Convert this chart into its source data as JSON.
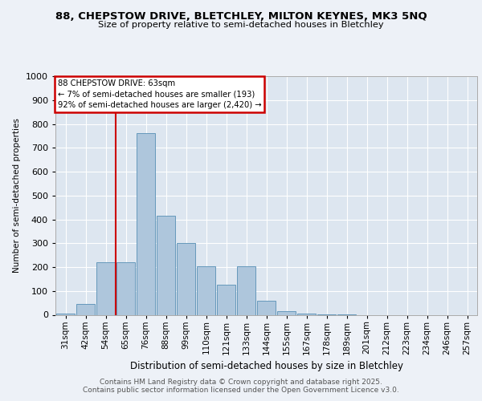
{
  "title1": "88, CHEPSTOW DRIVE, BLETCHLEY, MILTON KEYNES, MK3 5NQ",
  "title2": "Size of property relative to semi-detached houses in Bletchley",
  "xlabel": "Distribution of semi-detached houses by size in Bletchley",
  "ylabel": "Number of semi-detached properties",
  "categories": [
    "31sqm",
    "42sqm",
    "54sqm",
    "65sqm",
    "76sqm",
    "88sqm",
    "99sqm",
    "110sqm",
    "121sqm",
    "133sqm",
    "144sqm",
    "155sqm",
    "167sqm",
    "178sqm",
    "189sqm",
    "201sqm",
    "212sqm",
    "223sqm",
    "234sqm",
    "246sqm",
    "257sqm"
  ],
  "values": [
    5,
    45,
    220,
    220,
    760,
    415,
    300,
    205,
    125,
    205,
    60,
    15,
    5,
    3,
    1,
    0,
    0,
    0,
    0,
    0,
    0
  ],
  "bar_color": "#aec6dc",
  "bar_edge_color": "#6699bb",
  "vline_color": "#cc0000",
  "vline_pos": 2.5,
  "annotation_title": "88 CHEPSTOW DRIVE: 63sqm",
  "annotation_line1": "← 7% of semi-detached houses are smaller (193)",
  "annotation_line2": "92% of semi-detached houses are larger (2,420) →",
  "annotation_box_color": "#cc0000",
  "ylim": [
    0,
    1000
  ],
  "yticks": [
    0,
    100,
    200,
    300,
    400,
    500,
    600,
    700,
    800,
    900,
    1000
  ],
  "footer1": "Contains HM Land Registry data © Crown copyright and database right 2025.",
  "footer2": "Contains public sector information licensed under the Open Government Licence v3.0.",
  "bg_color": "#edf1f7",
  "plot_bg_color": "#dde6f0"
}
